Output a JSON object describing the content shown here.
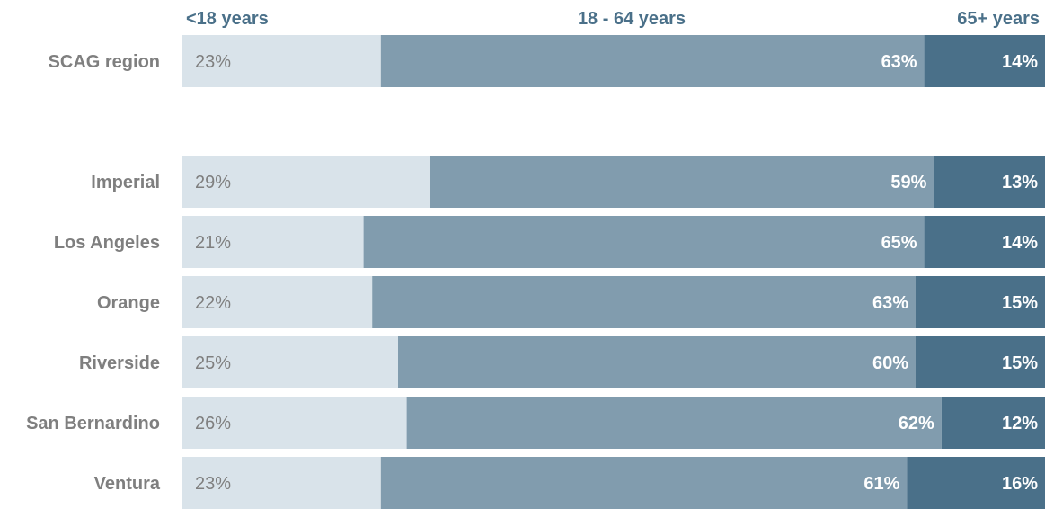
{
  "chart_data": {
    "type": "bar",
    "orientation": "horizontal",
    "stacked": true,
    "normalized_percent": true,
    "categories": [
      "SCAG region",
      "Imperial",
      "Los Angeles",
      "Orange",
      "Riverside",
      "San Bernardino",
      "Ventura"
    ],
    "series": [
      {
        "name": "<18 years",
        "values": [
          23,
          29,
          21,
          22,
          25,
          26,
          23
        ],
        "labels": [
          "23%",
          "29%",
          "21%",
          "22%",
          "25%",
          "26%",
          "23%"
        ],
        "color": "#d9e3ea",
        "label_color": "#7f7f7f"
      },
      {
        "name": "18 - 64 years",
        "values": [
          63,
          59,
          65,
          63,
          60,
          62,
          61
        ],
        "labels": [
          "63%",
          "59%",
          "65%",
          "63%",
          "60%",
          "62%",
          "61%"
        ],
        "color": "#819cae",
        "label_color": "#ffffff"
      },
      {
        "name": "65+ years",
        "values": [
          14,
          13,
          14,
          15,
          15,
          12,
          16
        ],
        "labels": [
          "14%",
          "13%",
          "14%",
          "15%",
          "15%",
          "12%",
          "16%"
        ],
        "color": "#4a7089",
        "label_color": "#ffffff"
      }
    ],
    "legend_placement": "top",
    "grid": false
  }
}
